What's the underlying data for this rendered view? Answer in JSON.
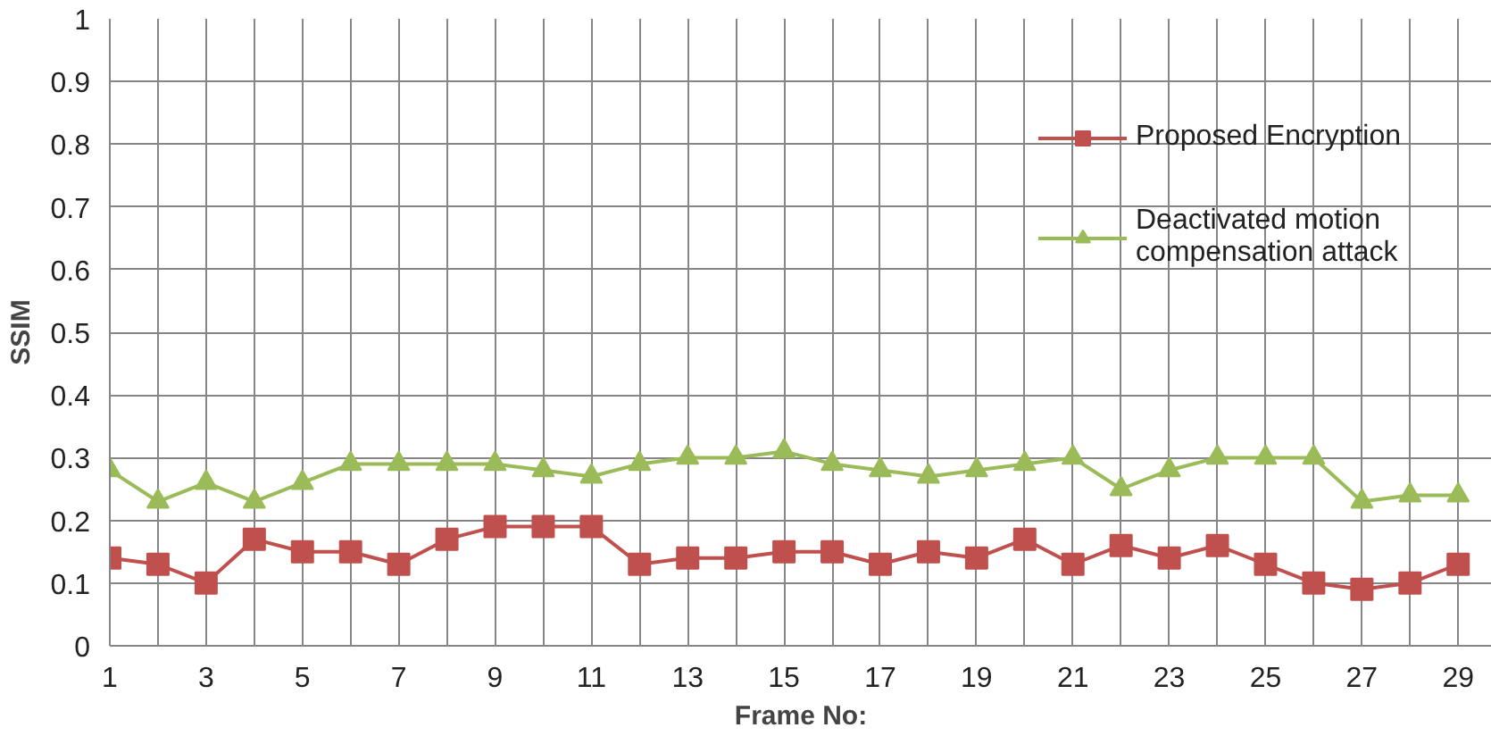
{
  "chart_data": {
    "type": "line",
    "xlabel": "Frame No:",
    "ylabel": "SSIM",
    "x": [
      1,
      2,
      3,
      4,
      5,
      6,
      7,
      8,
      9,
      10,
      11,
      12,
      13,
      14,
      15,
      16,
      17,
      18,
      19,
      20,
      21,
      22,
      23,
      24,
      25,
      26,
      27,
      28,
      29
    ],
    "series": [
      {
        "name": "Proposed Encryption",
        "color": "#c0504d",
        "marker": "square",
        "values": [
          0.14,
          0.13,
          0.1,
          0.17,
          0.15,
          0.15,
          0.13,
          0.17,
          0.19,
          0.19,
          0.19,
          0.13,
          0.14,
          0.14,
          0.15,
          0.15,
          0.13,
          0.15,
          0.14,
          0.17,
          0.13,
          0.16,
          0.14,
          0.16,
          0.13,
          0.1,
          0.09,
          0.1,
          0.13
        ]
      },
      {
        "name": "Deactivated motion compensation attack",
        "color": "#9bbb59",
        "marker": "triangle",
        "values": [
          0.28,
          0.23,
          0.26,
          0.23,
          0.26,
          0.29,
          0.29,
          0.29,
          0.29,
          0.28,
          0.27,
          0.29,
          0.3,
          0.3,
          0.31,
          0.29,
          0.28,
          0.27,
          0.28,
          0.29,
          0.3,
          0.25,
          0.28,
          0.3,
          0.3,
          0.3,
          0.23,
          0.24,
          0.24
        ]
      }
    ],
    "xlim": [
      1,
      29.7
    ],
    "ylim": [
      0,
      1
    ],
    "xticks": [
      1,
      {
        "value": 2,
        "label": null
      },
      3,
      {
        "value": 4,
        "label": null
      },
      5,
      {
        "value": 6,
        "label": null
      },
      7,
      {
        "value": 8,
        "label": null
      },
      9,
      {
        "value": 10,
        "label": null
      },
      11,
      {
        "value": 12,
        "label": null
      },
      13,
      {
        "value": 14,
        "label": null
      },
      15,
      {
        "value": 16,
        "label": null
      },
      17,
      {
        "value": 18,
        "label": null
      },
      19,
      {
        "value": 20,
        "label": null
      },
      21,
      {
        "value": 22,
        "label": null
      },
      23,
      {
        "value": 24,
        "label": null
      },
      25,
      {
        "value": 26,
        "label": null
      },
      27,
      {
        "value": 28,
        "label": null
      },
      29
    ],
    "yticks": [
      0,
      0.1,
      0.2,
      0.3,
      0.4,
      0.5,
      0.6,
      0.7,
      0.8,
      0.9,
      1
    ],
    "grid": true,
    "legend": "top right",
    "line_style": "solid"
  }
}
